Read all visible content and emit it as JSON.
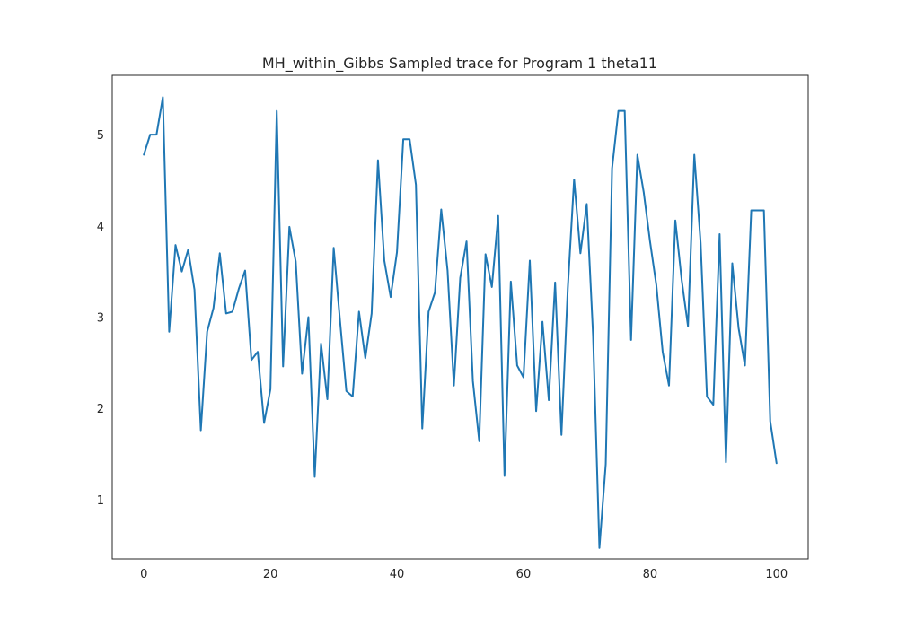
{
  "chart_data": {
    "type": "line",
    "title": "MH_within_Gibbs Sampled trace for Program 1 theta11",
    "xlabel": "",
    "ylabel": "",
    "xlim": [
      -5,
      105
    ],
    "ylim": [
      0.35,
      5.65
    ],
    "grid": false,
    "x_ticks": [
      0,
      20,
      40,
      60,
      80,
      100
    ],
    "x_tick_labels": [
      "0",
      "20",
      "40",
      "60",
      "80",
      "100"
    ],
    "y_ticks": [
      1,
      2,
      3,
      4,
      5
    ],
    "y_tick_labels": [
      "1",
      "2",
      "3",
      "4",
      "5"
    ],
    "color": "#1f77b4",
    "series": [
      {
        "x": [
          0,
          1,
          2,
          3,
          4,
          5,
          6,
          7,
          8,
          9,
          10,
          11,
          12,
          13,
          14,
          15,
          16,
          17,
          18,
          19,
          20,
          21,
          22,
          23,
          24,
          25,
          26,
          27,
          28,
          29,
          30,
          31,
          32,
          33,
          34,
          35,
          36,
          37,
          38,
          39,
          40,
          41,
          42,
          43,
          44,
          45,
          46,
          47,
          48,
          49,
          50,
          51,
          52,
          53,
          54,
          55,
          56,
          57,
          58,
          59,
          60,
          61,
          62,
          63,
          64,
          65,
          66,
          67,
          68,
          69,
          70,
          71,
          72,
          73,
          74,
          75,
          76,
          77,
          78,
          79,
          80,
          81,
          82,
          83,
          84,
          85,
          86,
          87,
          88,
          89,
          90,
          91,
          92,
          93,
          94,
          95,
          96,
          97,
          98,
          99,
          100
        ],
        "values": [
          4.78,
          5.0,
          5.0,
          5.41,
          2.84,
          3.79,
          3.5,
          3.74,
          3.3,
          1.76,
          2.84,
          3.1,
          3.7,
          3.04,
          3.06,
          3.31,
          3.51,
          2.53,
          2.62,
          1.84,
          2.21,
          5.26,
          2.46,
          3.99,
          3.61,
          2.38,
          3.0,
          1.25,
          2.71,
          2.1,
          3.76,
          2.96,
          2.19,
          2.13,
          3.06,
          2.55,
          3.04,
          4.72,
          3.62,
          3.22,
          3.71,
          4.95,
          4.95,
          4.45,
          1.78,
          3.06,
          3.27,
          4.18,
          3.51,
          2.25,
          3.43,
          3.83,
          2.3,
          1.64,
          3.69,
          3.33,
          4.11,
          1.26,
          3.39,
          2.47,
          2.34,
          3.62,
          1.97,
          2.95,
          2.09,
          3.38,
          1.71,
          3.31,
          4.51,
          3.7,
          4.24,
          2.8,
          0.47,
          1.39,
          4.63,
          5.26,
          5.26,
          2.75,
          4.78,
          4.37,
          3.83,
          3.35,
          2.62,
          2.25,
          4.06,
          3.41,
          2.9,
          4.78,
          3.81,
          2.13,
          2.04,
          3.91,
          1.41,
          3.59,
          2.88,
          2.47,
          4.17,
          4.17,
          4.17,
          1.86,
          1.4
        ]
      }
    ]
  }
}
